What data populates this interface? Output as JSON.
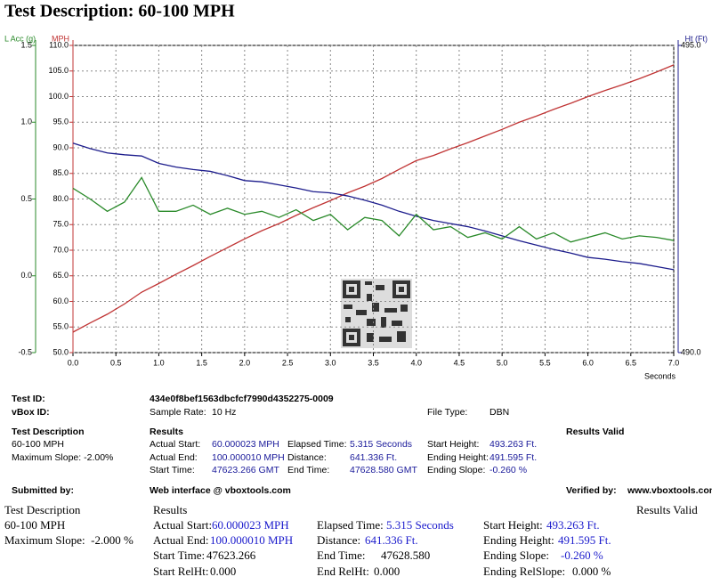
{
  "chart_data": {
    "type": "line",
    "title": "Test Description: 60-100 MPH",
    "x_label": "Seconds",
    "y_label": "MPH",
    "y2_label": "Ht (Ft)",
    "y3_label": "L Acc (g)",
    "x": [
      0,
      0.2,
      0.4,
      0.6,
      0.8,
      1.0,
      1.2,
      1.4,
      1.6,
      1.8,
      2.0,
      2.2,
      2.4,
      2.6,
      2.8,
      3.0,
      3.2,
      3.4,
      3.6,
      3.8,
      4.0,
      4.2,
      4.4,
      4.6,
      4.8,
      5.0,
      5.2,
      5.4,
      5.6,
      5.8,
      6.0,
      6.2,
      6.4,
      6.6,
      6.8,
      7.0
    ],
    "series": [
      {
        "name": "MPH",
        "color": "#c03434",
        "axis": "y",
        "values": [
          54.0,
          55.8,
          57.5,
          59.5,
          61.8,
          63.5,
          65.3,
          67.0,
          68.8,
          70.5,
          72.2,
          73.8,
          75.2,
          76.8,
          78.3,
          79.7,
          81.2,
          82.5,
          84.0,
          85.8,
          87.5,
          88.5,
          89.8,
          91.0,
          92.3,
          93.6,
          95.0,
          96.2,
          97.5,
          98.7,
          100.0,
          101.2,
          102.3,
          103.5,
          104.8,
          106.2
        ]
      },
      {
        "name": "Ht (Ft)",
        "color": "#1c1c8c",
        "axis": "y2",
        "values": [
          493.41,
          493.32,
          493.25,
          493.22,
          493.2,
          493.08,
          493.02,
          492.98,
          492.95,
          492.88,
          492.8,
          492.78,
          492.73,
          492.68,
          492.62,
          492.6,
          492.55,
          492.48,
          492.4,
          492.3,
          492.22,
          492.15,
          492.1,
          492.05,
          491.98,
          491.9,
          491.82,
          491.75,
          491.68,
          491.62,
          491.55,
          491.52,
          491.48,
          491.45,
          491.4,
          491.35
        ]
      },
      {
        "name": "L Acc (g)",
        "color": "#2a8a2a",
        "axis": "y3",
        "values": [
          0.57,
          0.5,
          0.42,
          0.48,
          0.64,
          0.42,
          0.42,
          0.46,
          0.4,
          0.44,
          0.4,
          0.42,
          0.38,
          0.43,
          0.36,
          0.4,
          0.3,
          0.38,
          0.36,
          0.26,
          0.4,
          0.3,
          0.32,
          0.25,
          0.28,
          0.24,
          0.32,
          0.24,
          0.28,
          0.22,
          0.25,
          0.28,
          0.24,
          0.26,
          0.25,
          0.23
        ]
      }
    ],
    "xlim": [
      0,
      7
    ],
    "xticks": [
      {
        "value": 0,
        "label": "0.0"
      },
      0.5,
      {
        "value": 1,
        "label": "1.0"
      },
      1.5,
      {
        "value": 2,
        "label": "2.0"
      },
      2.5,
      {
        "value": 3,
        "label": "3.0"
      },
      3.5,
      {
        "value": 4,
        "label": "4.0"
      },
      4.5,
      {
        "value": 5,
        "label": "5.0"
      },
      5.5,
      {
        "value": 6,
        "label": "6.0"
      },
      6.5,
      {
        "value": 7,
        "label": "7.0"
      }
    ],
    "ylim": [
      50,
      110
    ],
    "yticks": [
      {
        "value": 50,
        "label": "50.0"
      },
      {
        "value": 55,
        "label": "55.0"
      },
      {
        "value": 60,
        "label": "60.0"
      },
      {
        "value": 65,
        "label": "65.0"
      },
      {
        "value": 70,
        "label": "70.0"
      },
      {
        "value": 75,
        "label": "75.0"
      },
      {
        "value": 80,
        "label": "80.0"
      },
      {
        "value": 85,
        "label": "85.0"
      },
      {
        "value": 90,
        "label": "90.0"
      },
      {
        "value": 95,
        "label": "95.0"
      },
      {
        "value": 100,
        "label": "100.0"
      },
      {
        "value": 105,
        "label": "105.0"
      },
      {
        "value": 110,
        "label": "110.0"
      }
    ],
    "y2lim": [
      490,
      495
    ],
    "y2ticks": [
      {
        "value": 490,
        "label": "490.0"
      },
      {
        "value": 495,
        "label": "495.0"
      }
    ],
    "y3lim": [
      -0.5,
      1.5
    ],
    "y3ticks": [
      -0.5,
      {
        "value": 0,
        "label": "0.0"
      },
      0.5,
      {
        "value": 1,
        "label": "1.0"
      },
      1.5
    ],
    "grid": true
  },
  "report": {
    "test_id": [
      "Test ID:",
      "434e0f8bef1563dbcfcf7990d4352275-0009"
    ],
    "vbox_id": [
      "vBox ID:"
    ],
    "sample_rate": [
      "Sample Rate:",
      "10 Hz"
    ],
    "file_type": [
      "File Type:",
      "DBN"
    ],
    "headings": [
      "Test Description",
      "Results",
      "Results Valid"
    ],
    "description": [
      "60-100 MPH",
      "Maximum Slope: -2.00%"
    ],
    "results": [
      [
        "Actual Start:",
        "60.000023 MPH"
      ],
      [
        "Actual End:",
        "100.000010 MPH"
      ],
      [
        "Start Time:",
        "47623.266 GMT"
      ],
      [
        "Elapsed Time:",
        "5.315 Seconds"
      ],
      [
        "Distance:",
        "641.336 Ft."
      ],
      [
        "End Time:",
        "47628.580 GMT"
      ],
      [
        "Start Height:",
        "493.263 Ft."
      ],
      [
        "Ending Height:",
        "491.595 Ft."
      ],
      [
        "Ending Slope:",
        "-0.260 %"
      ]
    ],
    "footer": [
      "Submitted by:",
      "Web interface @ vboxtools.com",
      "Verified by:",
      "www.vboxtools.com"
    ]
  },
  "summary": {
    "headings": [
      "Test Description",
      "Results",
      "Results Valid"
    ],
    "description": [
      "60-100 MPH",
      "Maximum Slope:  -2.000 %"
    ],
    "results": [
      [
        "Actual Start:",
        "60.000023 MPH"
      ],
      [
        "Actual End:",
        "100.000010 MPH"
      ],
      [
        "Start Time:",
        "47623.266"
      ],
      [
        "Start RelHt:",
        "0.000"
      ],
      [
        "Elapsed Time:",
        "5.315 Seconds"
      ],
      [
        "Distance:",
        "641.336 Ft."
      ],
      [
        "End Time:",
        "47628.580"
      ],
      [
        "End RelHt:",
        "0.000"
      ],
      [
        "Start Height:",
        "493.263 Ft."
      ],
      [
        "Ending Height:",
        "491.595 Ft."
      ],
      [
        "Ending Slope:",
        "-0.260 %"
      ],
      [
        "Ending RelSlope:",
        "0.000 %"
      ]
    ]
  }
}
